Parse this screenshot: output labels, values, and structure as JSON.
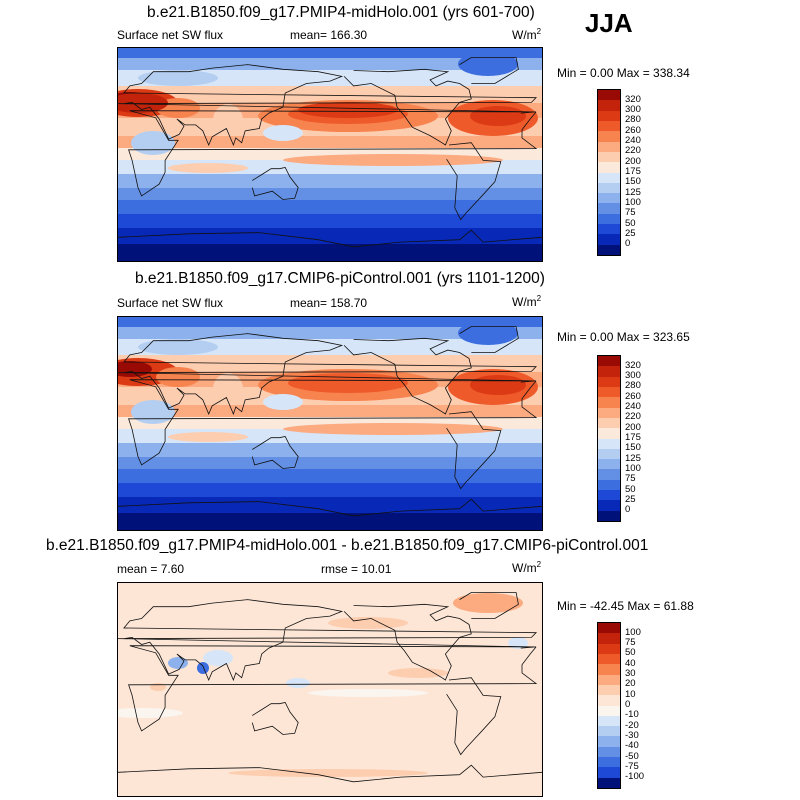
{
  "season": "JJA",
  "chart_data": [
    {
      "type": "heatmap",
      "title": "b.e21.B1850.f09_g17.PMIP4-midHolo.001 (yrs 601-700)",
      "variable": "Surface net SW flux",
      "stat_left": "mean= 166.30",
      "unit": "W/m",
      "unit_exp": "2",
      "minmax": "Min =   0.00 Max = 338.34",
      "min": 0.0,
      "max": 338.34,
      "mean": 166.3,
      "levels": [
        "320",
        "300",
        "280",
        "260",
        "240",
        "220",
        "200",
        "175",
        "150",
        "125",
        "100",
        "75",
        "50",
        "25",
        "0"
      ],
      "colors": [
        "#9a0a04",
        "#c2230a",
        "#dc3a14",
        "#ee5a2a",
        "#f7834f",
        "#fcaa80",
        "#fdcdb0",
        "#fbe9dc",
        "#d6e6f8",
        "#b4cef2",
        "#8cb1ec",
        "#6390e4",
        "#3d6ee0",
        "#1e48d6",
        "#0828b8",
        "#00127a"
      ]
    },
    {
      "type": "heatmap",
      "title": "b.e21.B1850.f09_g17.CMIP6-piControl.001 (yrs 1101-1200)",
      "variable": "Surface net SW flux",
      "stat_left": "mean= 158.70",
      "unit": "W/m",
      "unit_exp": "2",
      "minmax": "Min =   0.00 Max = 323.65",
      "min": 0.0,
      "max": 323.65,
      "mean": 158.7,
      "levels": [
        "320",
        "300",
        "280",
        "260",
        "240",
        "220",
        "200",
        "175",
        "150",
        "125",
        "100",
        "75",
        "50",
        "25",
        "0"
      ],
      "colors": [
        "#9a0a04",
        "#c2230a",
        "#dc3a14",
        "#ee5a2a",
        "#f7834f",
        "#fcaa80",
        "#fdcdb0",
        "#fbe9dc",
        "#d6e6f8",
        "#b4cef2",
        "#8cb1ec",
        "#6390e4",
        "#3d6ee0",
        "#1e48d6",
        "#0828b8",
        "#00127a"
      ]
    },
    {
      "type": "heatmap",
      "title": "b.e21.B1850.f09_g17.PMIP4-midHolo.001 - b.e21.B1850.f09_g17.CMIP6-piControl.001",
      "stat_left": "mean =   7.60",
      "stat_mid": "rmse =  10.01",
      "unit": "W/m",
      "unit_exp": "2",
      "minmax": "Min = -42.45 Max =  61.88",
      "min": -42.45,
      "max": 61.88,
      "mean": 7.6,
      "rmse": 10.01,
      "levels": [
        "100",
        "75",
        "50",
        "40",
        "30",
        "20",
        "10",
        "0",
        "-10",
        "-20",
        "-30",
        "-40",
        "-50",
        "-75",
        "-100"
      ],
      "colors": [
        "#9a0a04",
        "#c2230a",
        "#dc3a14",
        "#ee5a2a",
        "#f7834f",
        "#fcaa80",
        "#fdcdb0",
        "#fde6d6",
        "#fbf5f0",
        "#d6e6f8",
        "#b4cef2",
        "#8cb1ec",
        "#6390e4",
        "#3d6ee0",
        "#1e48d6",
        "#00127a"
      ]
    }
  ]
}
